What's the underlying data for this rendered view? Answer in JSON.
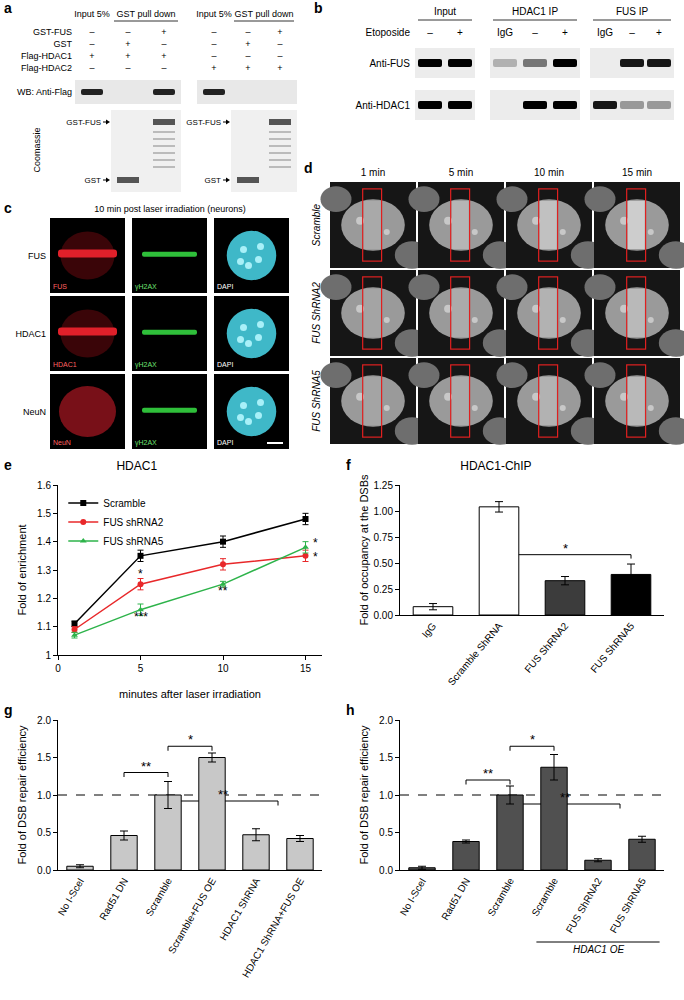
{
  "panels": {
    "a": {
      "label": "a",
      "row_labels": [
        "GST-FUS",
        "GST",
        "Flag-HDAC1",
        "Flag-HDAC2"
      ],
      "blots": [
        {
          "headers": [
            "Input 5%",
            "GST pull down"
          ],
          "signs": [
            [
              "–",
              "–",
              "+"
            ],
            [
              "–",
              "+",
              "–"
            ],
            [
              "+",
              "+",
              "+"
            ],
            [
              "–",
              "–",
              "–"
            ]
          ]
        },
        {
          "headers": [
            "Input 5%",
            "GST pull down"
          ],
          "signs": [
            [
              "–",
              "–",
              "+"
            ],
            [
              "–",
              "+",
              "–"
            ],
            [
              "–",
              "–",
              "–"
            ],
            [
              "+",
              "+",
              "+"
            ]
          ]
        }
      ],
      "wb_label": "WB: Anti-Flag",
      "stain_label": "Coomassie",
      "band_labels": [
        "GST-FUS",
        "GST"
      ]
    },
    "b": {
      "label": "b",
      "treatment": "Etoposide",
      "groups": [
        {
          "name": "Input",
          "lanes": [
            "–",
            "+"
          ]
        },
        {
          "name": "HDAC1 IP",
          "lanes": [
            "IgG",
            "–",
            "+"
          ]
        },
        {
          "name": "FUS IP",
          "lanes": [
            "IgG",
            "–",
            "+"
          ]
        }
      ],
      "rows": [
        "Anti-FUS",
        "Anti-HDAC1"
      ]
    },
    "c": {
      "label": "c",
      "title": "10 min post laser irradiation (neurons)",
      "rows": [
        {
          "name": "FUS",
          "tiles": [
            "FUS",
            "γH2AX",
            "DAPI"
          ]
        },
        {
          "name": "HDAC1",
          "tiles": [
            "HDAC1",
            "γH2AX",
            "DAPI"
          ]
        },
        {
          "name": "NeuN",
          "tiles": [
            "NeuN",
            "γH2AX",
            "DAPI"
          ]
        }
      ]
    },
    "d": {
      "label": "d",
      "columns": [
        "1 min",
        "5 min",
        "10 min",
        "15 min"
      ],
      "rows": [
        "Scramble",
        "FUS ShRNA2",
        "FUS ShRNA5"
      ]
    }
  },
  "chart_data": [
    {
      "panel": "e",
      "type": "line",
      "title": "HDAC1",
      "x_label": "minutes after laser irradiation",
      "y_label": "Fold of enrichment",
      "x": [
        1,
        5,
        10,
        15
      ],
      "xlim": [
        0,
        16
      ],
      "xticks": [
        0,
        5,
        10,
        15
      ],
      "ylim": [
        1,
        1.6
      ],
      "yticks": [
        1,
        1.1,
        1.2,
        1.3,
        1.4,
        1.5,
        1.6
      ],
      "grid": false,
      "legend": "upper left",
      "series": [
        {
          "name": "Scramble",
          "color": "#000000",
          "marker": "square",
          "values": [
            1.11,
            1.35,
            1.4,
            1.48
          ],
          "errors": [
            0.01,
            0.02,
            0.02,
            0.02
          ]
        },
        {
          "name": "FUS shRNA2",
          "color": "#e8282a",
          "marker": "circle",
          "values": [
            1.09,
            1.25,
            1.32,
            1.35
          ],
          "errors": [
            0.01,
            0.02,
            0.02,
            0.02
          ]
        },
        {
          "name": "FUS shRNA5",
          "color": "#2db34a",
          "marker": "triangle-up",
          "values": [
            1.07,
            1.16,
            1.25,
            1.38
          ],
          "errors": [
            0.01,
            0.02,
            0.01,
            0.02
          ]
        }
      ],
      "annotations": [
        {
          "text": "*",
          "x": 5,
          "y": 1.285
        },
        {
          "text": "***",
          "x": 5,
          "y": 1.135
        },
        {
          "text": "**",
          "x": 10,
          "y": 1.225
        },
        {
          "text": "*",
          "x": 15.6,
          "y": 1.395
        },
        {
          "text": "*",
          "x": 15.6,
          "y": 1.345
        }
      ]
    },
    {
      "panel": "f",
      "type": "bar",
      "title": "HDAC1-ChIP",
      "y_label": "Fold of occupancy at the DSBs",
      "categories": [
        "IgG",
        "Scramble ShRNA",
        "FUS ShRNA2",
        "FUS ShRNA5"
      ],
      "values": [
        0.08,
        1.04,
        0.33,
        0.39
      ],
      "errors": [
        0.03,
        0.05,
        0.04,
        0.1
      ],
      "colors": [
        "#ffffff",
        "#ffffff",
        "#3c3c3c",
        "#000000"
      ],
      "ylim": [
        0,
        1.25
      ],
      "yticks": [
        {
          "value": 0,
          "label": "0.00"
        },
        {
          "value": 0.25,
          "label": "0.25"
        },
        {
          "value": 0.5,
          "label": "0.50"
        },
        {
          "value": 0.75,
          "label": "0.75"
        },
        {
          "value": 1,
          "label": "1.00"
        },
        {
          "value": 1.25,
          "label": "1.25"
        }
      ],
      "grid": false,
      "significance": [
        {
          "from": 1,
          "to": 3,
          "y": 0.58,
          "text": "*"
        }
      ]
    },
    {
      "panel": "g",
      "type": "bar",
      "y_label": "Fold of DSB repair efficiency",
      "categories": [
        "No I-SceI",
        "Rad51 DN",
        "Scramble",
        "Scramble+FUS OE",
        "HDAC1 ShRNA",
        "HDAC1 ShRNA+FUS OE"
      ],
      "values": [
        0.05,
        0.46,
        1.0,
        1.5,
        0.47,
        0.42
      ],
      "errors": [
        0.02,
        0.06,
        0.18,
        0.06,
        0.08,
        0.04
      ],
      "color": "#c8c8c8",
      "ylim": [
        0,
        2
      ],
      "yticks": [
        {
          "value": 0,
          "label": "0.0"
        },
        {
          "value": 0.5,
          "label": "0.5"
        },
        {
          "value": 1,
          "label": "1.0"
        },
        {
          "value": 1.5,
          "label": "1.5"
        },
        {
          "value": 2,
          "label": "2.0"
        }
      ],
      "grid": false,
      "reference_line": 1,
      "significance": [
        {
          "from": 1,
          "to": 2,
          "y": 1.3,
          "text": "**"
        },
        {
          "from": 2,
          "to": 3,
          "y": 1.65,
          "text": "*"
        },
        {
          "from": 2,
          "to": 4.5,
          "y": 0.92,
          "text": "**"
        }
      ]
    },
    {
      "panel": "h",
      "type": "bar",
      "y_label": "Fold of DSB repair efficiency",
      "categories": [
        "No I-SceI",
        "Rad51 DN",
        "Scramble",
        "Scramble",
        "FUS ShRNA2",
        "FUS ShRNA5"
      ],
      "values": [
        0.03,
        0.38,
        1.0,
        1.37,
        0.13,
        0.41
      ],
      "errors": [
        0.02,
        0.02,
        0.12,
        0.17,
        0.02,
        0.04
      ],
      "color": "#505050",
      "ylim": [
        0,
        2
      ],
      "yticks": [
        {
          "value": 0,
          "label": "0.0"
        },
        {
          "value": 0.5,
          "label": "0.5"
        },
        {
          "value": 1,
          "label": "1.0"
        },
        {
          "value": 1.5,
          "label": "1.5"
        },
        {
          "value": 2,
          "label": "2.0"
        }
      ],
      "grid": false,
      "reference_line": 1,
      "significance": [
        {
          "from": 1,
          "to": 2,
          "y": 1.2,
          "text": "**"
        },
        {
          "from": 2,
          "to": 3,
          "y": 1.65,
          "text": "*"
        },
        {
          "from": 2,
          "to": 4.5,
          "y": 0.88,
          "text": "**"
        }
      ],
      "group": {
        "text": "HDAC1 OE",
        "from": 3,
        "to": 5
      }
    }
  ]
}
